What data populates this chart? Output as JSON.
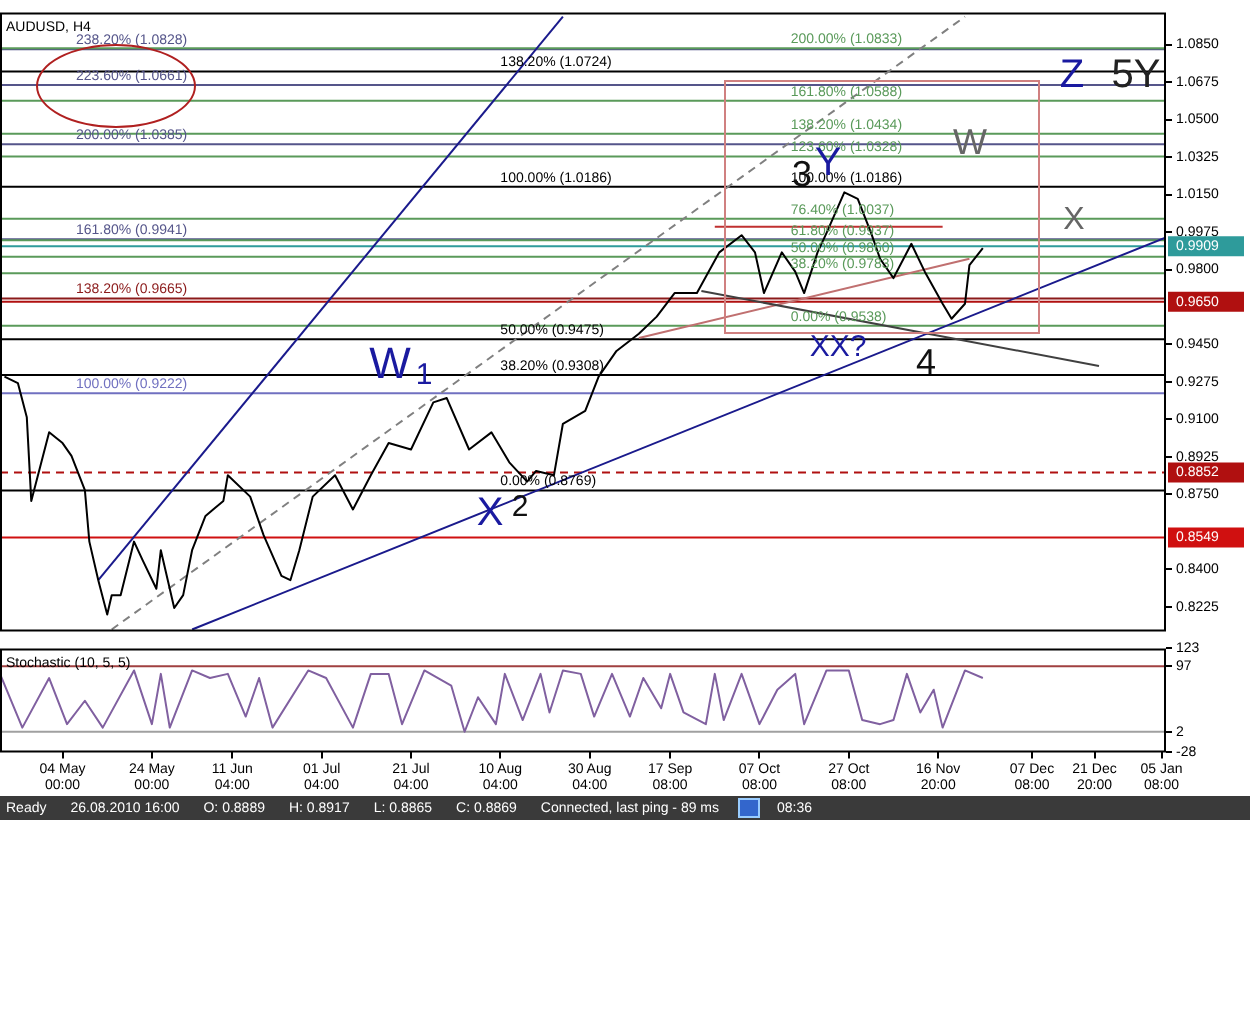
{
  "chart_data": [
    {
      "type": "line",
      "title": "AUDUSD, H4",
      "xlim": [
        "2010-04-20",
        "2011-01-06"
      ],
      "ylim": [
        0.811,
        1.1
      ],
      "tick_labels": "y",
      "marker": "none",
      "yticks": [
        {
          "value": 1.085,
          "label": "1.0850"
        },
        1.0675,
        {
          "value": 1.05,
          "label": "1.0500"
        },
        1.0325,
        {
          "value": 1.015,
          "label": "1.0150"
        },
        0.9975,
        {
          "value": 0.98,
          "label": "0.9800"
        },
        {
          "value": 0.945,
          "label": "0.9450"
        },
        0.9275,
        {
          "value": 0.91,
          "label": "0.9100"
        },
        0.8925,
        {
          "value": 0.875,
          "label": "0.8750"
        },
        {
          "value": 0.84,
          "label": "0.8400"
        },
        0.8225
      ],
      "series": [
        {
          "color": "#000000",
          "x": [
            "2010-04-21",
            "2010-04-24",
            "2010-04-26",
            "2010-04-27",
            "2010-05-01",
            "2010-05-04",
            "2010-05-06",
            "2010-05-09",
            "2010-05-10",
            "2010-05-12",
            "2010-05-14",
            "2010-05-15",
            "2010-05-17",
            "2010-05-20",
            "2010-05-22",
            "2010-05-25",
            "2010-05-26",
            "2010-05-29",
            "2010-05-31",
            "2010-06-02",
            "2010-06-05",
            "2010-06-09",
            "2010-06-10",
            "2010-06-15",
            "2010-06-18",
            "2010-06-22",
            "2010-06-24",
            "2010-06-26",
            "2010-06-29",
            "2010-07-04",
            "2010-07-08",
            "2010-07-12",
            "2010-07-16",
            "2010-07-21",
            "2010-07-26",
            "2010-07-29",
            "2010-08-03",
            "2010-08-08",
            "2010-08-12",
            "2010-08-16",
            "2010-08-18",
            "2010-08-22",
            "2010-08-24",
            "2010-08-29",
            "2010-09-01",
            "2010-09-05",
            "2010-09-10",
            "2010-09-14",
            "2010-09-18",
            "2010-09-23",
            "2010-09-28",
            "2010-10-03",
            "2010-10-06",
            "2010-10-08",
            "2010-10-12",
            "2010-10-15",
            "2010-10-17",
            "2010-10-20",
            "2010-10-22",
            "2010-10-26",
            "2010-10-29",
            "2010-11-01",
            "2010-11-03",
            "2010-11-06",
            "2010-11-10",
            "2010-11-13",
            "2010-11-17",
            "2010-11-19",
            "2010-11-22",
            "2010-11-23",
            "2010-11-26"
          ],
          "values": [
            0.93,
            0.927,
            0.911,
            0.872,
            0.904,
            0.899,
            0.893,
            0.877,
            0.853,
            0.835,
            0.819,
            0.828,
            0.828,
            0.853,
            0.844,
            0.831,
            0.849,
            0.822,
            0.828,
            0.849,
            0.865,
            0.872,
            0.884,
            0.874,
            0.856,
            0.837,
            0.835,
            0.849,
            0.874,
            0.884,
            0.868,
            0.884,
            0.899,
            0.896,
            0.918,
            0.92,
            0.896,
            0.904,
            0.89,
            0.881,
            0.886,
            0.884,
            0.908,
            0.914,
            0.93,
            0.942,
            0.95,
            0.958,
            0.969,
            0.969,
            0.988,
            0.996,
            0.988,
            0.969,
            0.988,
            0.979,
            0.969,
            0.988,
            0.997,
            1.016,
            1.013,
            0.997,
            0.985,
            0.976,
            0.992,
            0.979,
            0.964,
            0.957,
            0.964,
            0.982,
            0.99
          ]
        },
        {
          "type": "line",
          "color": "#1a1a8c",
          "x": [
            "2010-05-12",
            "2010-08-24"
          ],
          "values": [
            0.835,
            1.098
          ]
        },
        {
          "type": "line",
          "color": "#1a1a8c",
          "x": [
            "2010-06-02",
            "2011-01-06"
          ],
          "values": [
            0.812,
            0.995
          ]
        },
        {
          "type": "line",
          "color": "#808080",
          "line_style": "dashed",
          "x": [
            "2010-05-15",
            "2010-11-22"
          ],
          "values": [
            0.812,
            1.098
          ]
        },
        {
          "type": "line",
          "color": "#404040",
          "x": [
            "2010-09-24",
            "2010-12-22"
          ],
          "values": [
            0.97,
            0.935
          ]
        },
        {
          "type": "line",
          "color": "#c07070",
          "x": [
            "2010-09-10",
            "2010-11-23"
          ],
          "values": [
            0.948,
            0.985
          ]
        },
        {
          "type": "line",
          "color": "#c03030",
          "x": [
            "2010-09-27",
            "2010-11-17"
          ],
          "values": [
            1.0,
            1.0
          ]
        }
      ],
      "ref_lines": [
        {
          "axis": "y",
          "value": 1.0828,
          "color": "#55558a"
        },
        {
          "axis": "y",
          "value": 1.0661,
          "color": "#55558a"
        },
        {
          "axis": "y",
          "value": 1.0385,
          "color": "#55558a"
        },
        {
          "axis": "y",
          "value": 0.9941,
          "color": "#55558a"
        },
        {
          "axis": "y",
          "value": 0.9665,
          "color": "#8b1a1a"
        },
        {
          "axis": "y",
          "value": 0.9222,
          "color": "#7070c0"
        },
        {
          "axis": "y",
          "value": 1.0724,
          "color": "#000000"
        },
        {
          "axis": "y",
          "value": 1.0186,
          "color": "#000000"
        },
        {
          "axis": "y",
          "value": 0.9475,
          "color": "#000000"
        },
        {
          "axis": "y",
          "value": 0.9308,
          "color": "#000000"
        },
        {
          "axis": "y",
          "value": 0.8769,
          "color": "#000000"
        },
        {
          "axis": "y",
          "value": 1.0833,
          "color": "#5a9a5a"
        },
        {
          "axis": "y",
          "value": 1.0588,
          "color": "#5a9a5a"
        },
        {
          "axis": "y",
          "value": 1.0434,
          "color": "#5a9a5a"
        },
        {
          "axis": "y",
          "value": 1.0328,
          "color": "#5a9a5a"
        },
        {
          "axis": "y",
          "value": 1.0037,
          "color": "#5a9a5a"
        },
        {
          "axis": "y",
          "value": 0.9937,
          "color": "#5a9a5a"
        },
        {
          "axis": "y",
          "value": 0.986,
          "color": "#5a9a5a"
        },
        {
          "axis": "y",
          "value": 0.9783,
          "color": "#5a9a5a"
        },
        {
          "axis": "y",
          "value": 0.9538,
          "color": "#5a9a5a"
        },
        {
          "axis": "y",
          "value": 0.9909,
          "label": "0.9909",
          "color": "#2e9b9b"
        },
        {
          "axis": "y",
          "value": 0.965,
          "label": "0.9650",
          "color": "#b01010"
        },
        {
          "axis": "y",
          "value": 0.8852,
          "label": "0.8852",
          "color": "#b01010",
          "line_style": "dashed"
        },
        {
          "axis": "y",
          "value": 0.8549,
          "label": "0.8549",
          "color": "#d01010"
        }
      ],
      "annotations": [
        {
          "text": "238.20% (1.0828)",
          "x": "2010-05-07",
          "y": 1.0828
        },
        {
          "text": "223.60% (1.0661)",
          "x": "2010-05-07",
          "y": 1.0661
        },
        {
          "text": "200.00% (1.0385)",
          "x": "2010-05-07",
          "y": 1.0385
        },
        {
          "text": "161.80% (0.9941)",
          "x": "2010-05-07",
          "y": 0.9941
        },
        {
          "text": "138.20% (0.9665)",
          "x": "2010-05-07",
          "y": 0.9665
        },
        {
          "text": "100.00% (0.9222)",
          "x": "2010-05-07",
          "y": 0.9222
        },
        {
          "text": "138.20% (1.0724)",
          "x": "2010-08-10",
          "y": 1.0724
        },
        {
          "text": "100.00% (1.0186)",
          "x": "2010-08-10",
          "y": 1.0186
        },
        {
          "text": "50.00% (0.9475)",
          "x": "2010-08-10",
          "y": 0.9475
        },
        {
          "text": "38.20% (0.9308)",
          "x": "2010-08-10",
          "y": 0.9308
        },
        {
          "text": "0.00% (0.8769)",
          "x": "2010-08-10",
          "y": 0.8769
        },
        {
          "text": "200.00% (1.0833)",
          "x": "2010-10-14",
          "y": 1.0833
        },
        {
          "text": "161.80% (1.0588)",
          "x": "2010-10-14",
          "y": 1.0588
        },
        {
          "text": "138.20% (1.0434)",
          "x": "2010-10-14",
          "y": 1.0434
        },
        {
          "text": "123.60% (1.0328)",
          "x": "2010-10-14",
          "y": 1.0328
        },
        {
          "text": "100.00% (1.0186)",
          "x": "2010-10-14",
          "y": 1.0186
        },
        {
          "text": "76.40% (1.0037)",
          "x": "2010-10-14",
          "y": 1.0037
        },
        {
          "text": "61.80% (0.9937)",
          "x": "2010-10-14",
          "y": 0.9937
        },
        {
          "text": "50.00% (0.9860)",
          "x": "2010-10-14",
          "y": 0.986
        },
        {
          "text": "38.20% (0.9783)",
          "x": "2010-10-14",
          "y": 0.9783
        },
        {
          "text": "0.00% (0.9538)",
          "x": "2010-10-14",
          "y": 0.9538
        },
        "W",
        "1",
        "X",
        "2",
        "3",
        "Y",
        "XX?",
        "4",
        "Z",
        "5Y",
        "W",
        "X"
      ]
    },
    {
      "type": "line",
      "title": "Stochastic (10, 5, 5)",
      "xlim": [
        "2010-04-20",
        "2011-01-06"
      ],
      "ylim": [
        -28,
        123
      ],
      "yticks": [
        123,
        97,
        2,
        -28
      ],
      "marker": "none",
      "xticks": [
        {
          "value": "2010-05-04",
          "label": "04 May 00:00"
        },
        {
          "value": "2010-05-24",
          "label": "24 May 00:00"
        },
        {
          "value": "2010-06-11",
          "label": "11 Jun 04:00"
        },
        {
          "value": "2010-07-01",
          "label": "01 Jul 04:00"
        },
        {
          "value": "2010-07-21",
          "label": "21 Jul 04:00"
        },
        {
          "value": "2010-08-10",
          "label": "10 Aug 04:00"
        },
        {
          "value": "2010-08-30",
          "label": "30 Aug 04:00"
        },
        {
          "value": "2010-09-17",
          "label": "17 Sep 08:00"
        },
        {
          "value": "2010-10-07",
          "label": "07 Oct 08:00"
        },
        {
          "value": "2010-10-27",
          "label": "27 Oct 08:00"
        },
        {
          "value": "2010-11-16",
          "label": "16 Nov 20:00"
        },
        {
          "value": "2010-12-07",
          "label": "07 Dec 08:00"
        },
        {
          "value": "2010-12-21",
          "label": "21 Dec 20:00"
        },
        {
          "value": "2011-01-05",
          "label": "05 Jan 08:00"
        }
      ],
      "series": [
        {
          "color": "#8060a0",
          "x": [
            "2010-04-20",
            "2010-04-25",
            "2010-05-01",
            "2010-05-05",
            "2010-05-09",
            "2010-05-13",
            "2010-05-20",
            "2010-05-24",
            "2010-05-26",
            "2010-05-28",
            "2010-06-02",
            "2010-06-06",
            "2010-06-10",
            "2010-06-14",
            "2010-06-17",
            "2010-06-20",
            "2010-06-28",
            "2010-07-02",
            "2010-07-08",
            "2010-07-12",
            "2010-07-16",
            "2010-07-19",
            "2010-07-24",
            "2010-07-30",
            "2010-08-02",
            "2010-08-05",
            "2010-08-09",
            "2010-08-11",
            "2010-08-15",
            "2010-08-19",
            "2010-08-21",
            "2010-08-24",
            "2010-08-28",
            "2010-08-31",
            "2010-09-04",
            "2010-09-08",
            "2010-09-11",
            "2010-09-15",
            "2010-09-17",
            "2010-09-20",
            "2010-09-25",
            "2010-09-27",
            "2010-09-29",
            "2010-10-03",
            "2010-10-07",
            "2010-10-11",
            "2010-10-15",
            "2010-10-17",
            "2010-10-22",
            "2010-10-27",
            "2010-10-30",
            "2010-11-03",
            "2010-11-06",
            "2010-11-09",
            "2010-11-12",
            "2010-11-15",
            "2010-11-17",
            "2010-11-22",
            "2010-11-26"
          ],
          "values": [
            86,
            8,
            80,
            13,
            47,
            8,
            91,
            13,
            86,
            8,
            91,
            80,
            86,
            24,
            80,
            8,
            91,
            80,
            8,
            86,
            86,
            13,
            91,
            69,
            2,
            52,
            13,
            86,
            19,
            86,
            30,
            91,
            86,
            24,
            86,
            24,
            80,
            36,
            86,
            30,
            13,
            86,
            19,
            86,
            13,
            63,
            86,
            13,
            91,
            91,
            19,
            13,
            19,
            86,
            30,
            63,
            8,
            91,
            80
          ]
        }
      ],
      "ref_lines": [
        {
          "axis": "y",
          "value": 97,
          "color": "#a04040"
        },
        {
          "axis": "y",
          "value": 2,
          "color": "#a0a0a0"
        }
      ],
      "annotations": [
        "Ready",
        "26.08.2010 16:00",
        "O: 0.8889",
        "H: 0.8917",
        "L: 0.8865",
        "C: 0.8869",
        "Connected, last ping - 89 ms",
        "08:36"
      ]
    }
  ]
}
